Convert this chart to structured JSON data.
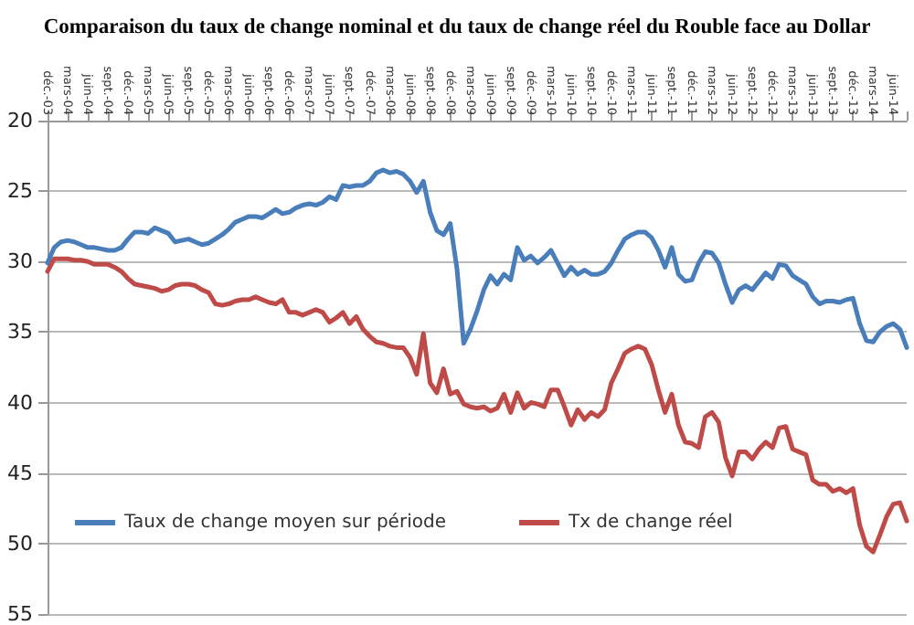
{
  "chart_data": {
    "type": "line",
    "title": "Comparaison du taux de change nominal et du taux de change réel du Rouble face au Dollar",
    "categories": [
      "déc.-03",
      null,
      null,
      "mars-04",
      null,
      null,
      "juin-04",
      null,
      null,
      "sept.-04",
      null,
      null,
      "déc.-04",
      null,
      null,
      "mars-05",
      null,
      null,
      "juin-05",
      null,
      null,
      "sept.-05",
      null,
      null,
      "déc.-05",
      null,
      null,
      "mars-06",
      null,
      null,
      "juin-06",
      null,
      null,
      "sept.-06",
      null,
      null,
      "déc.-06",
      null,
      null,
      "mars-07",
      null,
      null,
      "juin-07",
      null,
      null,
      "sept.-07",
      null,
      null,
      "déc.-07",
      null,
      null,
      "mars-08",
      null,
      null,
      "juin-08",
      null,
      null,
      "sept.-08",
      null,
      null,
      "déc.-08",
      null,
      null,
      "mars-09",
      null,
      null,
      "juin-09",
      null,
      null,
      "sept.-09",
      null,
      null,
      "déc.-09",
      null,
      null,
      "mars-10",
      null,
      null,
      "juin-10",
      null,
      null,
      "sept.-10",
      null,
      null,
      "déc.-10",
      null,
      null,
      "mars-11",
      null,
      null,
      "juin-11",
      null,
      null,
      "sept.-11",
      null,
      null,
      "déc.-11",
      null,
      null,
      "mars-12",
      null,
      null,
      "juin-12",
      null,
      null,
      "sept.-12",
      null,
      null,
      "déc.-12",
      null,
      null,
      "mars-13",
      null,
      null,
      "juin-13",
      null,
      null,
      "sept.-13",
      null,
      null,
      "déc.-13",
      null,
      null,
      "mars-14",
      null,
      null,
      "juin-14",
      null,
      null
    ],
    "series": [
      {
        "name": "Taux de change moyen sur période",
        "color": "#4a7ebb",
        "values": [
          30.1,
          29,
          28.6,
          28.5,
          28.6,
          28.8,
          29,
          29,
          29.1,
          29.2,
          29.2,
          29,
          28.4,
          27.9,
          27.9,
          28,
          27.6,
          27.8,
          28,
          28.6,
          28.5,
          28.4,
          28.6,
          28.8,
          28.7,
          28.4,
          28.1,
          27.7,
          27.2,
          27,
          26.8,
          26.8,
          26.9,
          26.6,
          26.3,
          26.6,
          26.5,
          26.2,
          26,
          25.9,
          26,
          25.8,
          25.4,
          25.6,
          24.6,
          24.7,
          24.6,
          24.6,
          24.3,
          23.7,
          23.5,
          23.7,
          23.6,
          23.8,
          24.3,
          25.1,
          24.3,
          26.5,
          27.8,
          28.1,
          27.3,
          30.5,
          35.8,
          34.8,
          33.5,
          32,
          31,
          31.6,
          30.9,
          31.3,
          29,
          29.9,
          29.6,
          30.1,
          29.7,
          29.2,
          30.1,
          31,
          30.4,
          30.9,
          30.6,
          30.9,
          30.9,
          30.7,
          30.1,
          29.2,
          28.4,
          28.1,
          27.9,
          27.9,
          28.3,
          29.2,
          30.4,
          29,
          30.9,
          31.4,
          31.3,
          30.1,
          29.3,
          29.4,
          30.1,
          31.6,
          32.9,
          32,
          31.7,
          32,
          31.4,
          30.8,
          31.2,
          30.2,
          30.3,
          31,
          31.3,
          31.6,
          32.5,
          33,
          32.8,
          32.8,
          32.9,
          32.7,
          32.6,
          34.4,
          35.6,
          35.7,
          35,
          34.6,
          34.4,
          34.8,
          36.1
        ]
      },
      {
        "name": "Tx de change réel",
        "color": "#be4b48",
        "values": [
          30.7,
          29.8,
          29.8,
          29.8,
          29.9,
          29.9,
          30,
          30.2,
          30.2,
          30.2,
          30.4,
          30.7,
          31.2,
          31.6,
          31.7,
          31.8,
          31.9,
          32.1,
          32,
          31.7,
          31.6,
          31.6,
          31.7,
          32,
          32.2,
          33,
          33.1,
          33,
          32.8,
          32.7,
          32.7,
          32.5,
          32.7,
          32.9,
          33,
          32.7,
          33.6,
          33.6,
          33.8,
          33.6,
          33.4,
          33.6,
          34.3,
          34,
          33.6,
          34.4,
          33.9,
          34.8,
          35.3,
          35.7,
          35.8,
          36,
          36.1,
          36.1,
          36.8,
          38,
          35.1,
          38.6,
          39.3,
          37.6,
          39.4,
          39.2,
          40.1,
          40.3,
          40.4,
          40.3,
          40.6,
          40.4,
          39.4,
          40.7,
          39.3,
          40.4,
          40,
          40.1,
          40.3,
          39.1,
          39.1,
          40.3,
          41.6,
          40.5,
          41.2,
          40.7,
          41,
          40.5,
          38.6,
          37.6,
          36.5,
          36.2,
          36,
          36.2,
          37.3,
          39.1,
          40.7,
          39.4,
          41.6,
          42.8,
          42.9,
          43.2,
          41,
          40.7,
          41.4,
          43.9,
          45.2,
          43.5,
          43.5,
          44,
          43.3,
          42.8,
          43.2,
          41.8,
          41.7,
          43.3,
          43.5,
          43.7,
          45.5,
          45.8,
          45.8,
          46.3,
          46.1,
          46.4,
          46.1,
          48.7,
          50.2,
          50.6,
          49.4,
          48.1,
          47.2,
          47.1,
          48.4
        ]
      }
    ],
    "ylim": [
      55,
      20
    ],
    "yticks": [
      20,
      25,
      30,
      35,
      40,
      45,
      50,
      55
    ],
    "grid": "y",
    "legend": "bottom left",
    "marker": "none",
    "line_style": "solid"
  }
}
